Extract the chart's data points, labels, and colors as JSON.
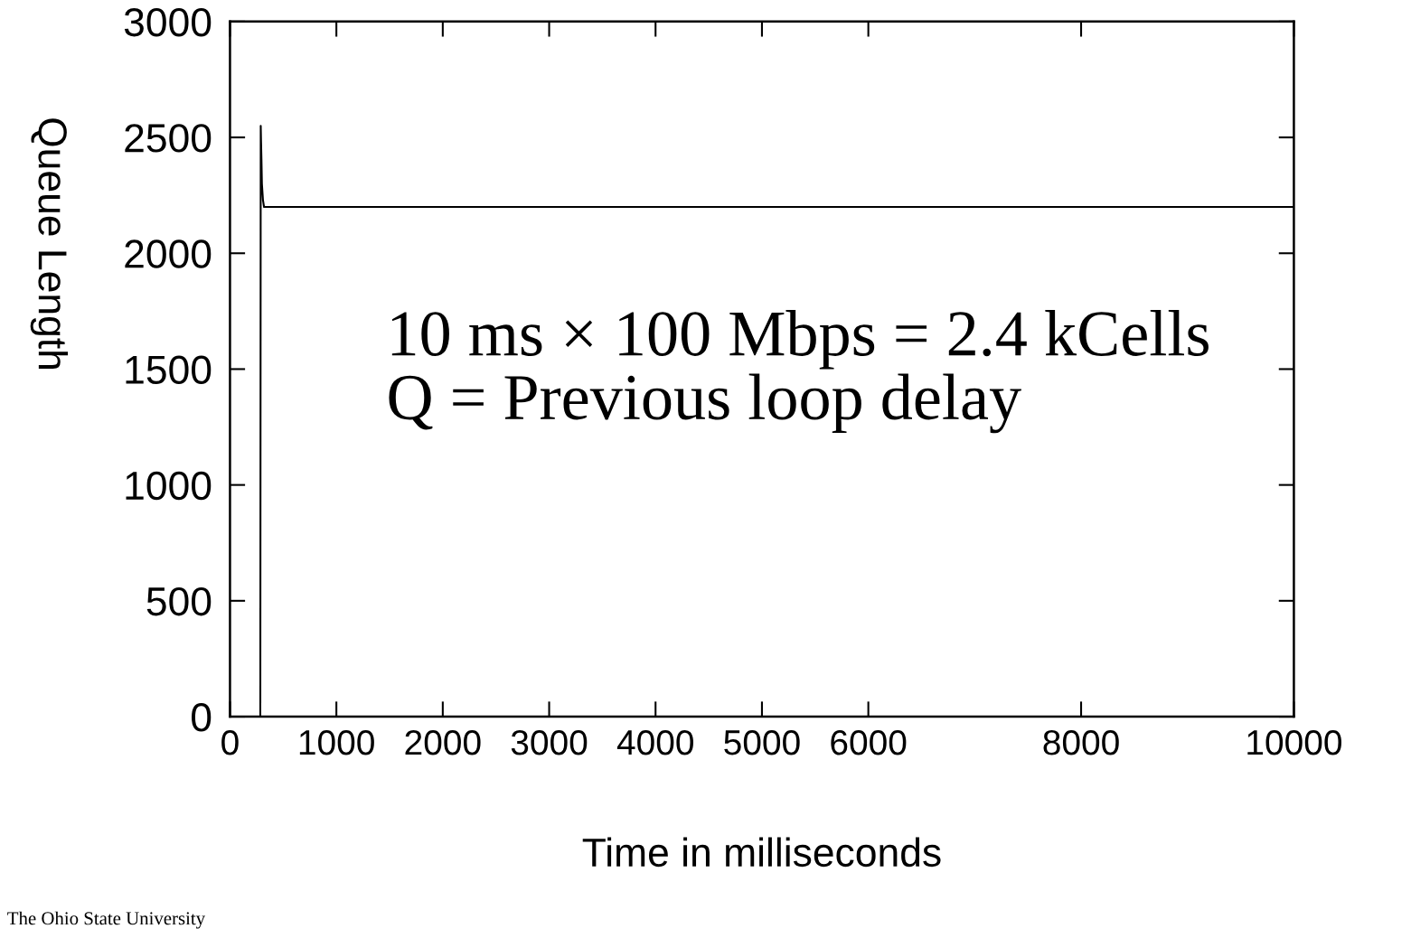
{
  "chart_data": {
    "type": "line",
    "xlabel": "Time in milliseconds",
    "ylabel": "Queue Length",
    "annotations": [
      "10 ms × 100 Mbps = 2.4 kCells\nQ = Previous loop delay",
      "The Ohio State University"
    ],
    "series": [
      {
        "color": "#000000",
        "x": [
          285,
          289,
          292,
          296,
          300,
          310,
          320,
          2000,
          4000,
          6000,
          8000,
          10000
        ],
        "values": [
          0,
          2550,
          2480,
          2400,
          2300,
          2230,
          2200,
          2200,
          2200,
          2200,
          2200,
          2200
        ]
      }
    ],
    "xlim": [
      0,
      10000
    ],
    "ylim": [
      0,
      3000
    ],
    "xticks": [
      0,
      1000,
      2000,
      3000,
      4000,
      5000,
      6000,
      8000,
      10000
    ],
    "yticks": [
      0,
      500,
      1000,
      1500,
      2000,
      2500,
      3000
    ],
    "grid": false,
    "legend": false,
    "marker": "none",
    "line_style": "solid"
  }
}
